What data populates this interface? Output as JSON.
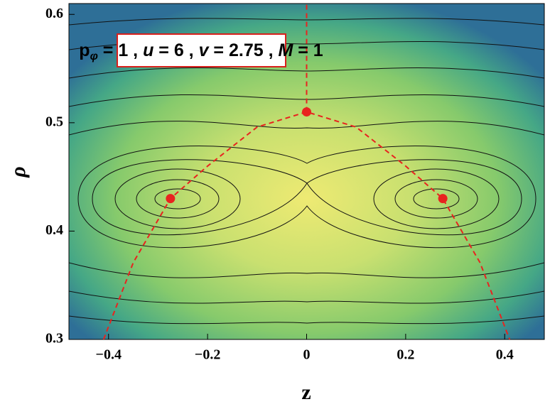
{
  "chart_data": {
    "type": "contour",
    "annotation": [
      "p",
      "φ",
      " = 1 ,  ",
      "u",
      " = 6 ,  ",
      "v",
      " = 2.75 ,  ",
      "M",
      " = 1"
    ],
    "x_label": "z",
    "y_label": "ρ",
    "xlim": [
      -0.48,
      0.48
    ],
    "ylim": [
      0.3,
      0.61
    ],
    "xticks": [
      {
        "value": -0.4,
        "label": "−0.4"
      },
      {
        "value": -0.2,
        "label": "−0.2"
      },
      0,
      0.2,
      0.4
    ],
    "yticks": [
      0.3,
      0.4,
      0.5,
      0.6
    ],
    "series": [
      {
        "kind": "dashed-line",
        "color": "#e8231f",
        "x": [
          -0.41,
          -0.35,
          -0.275,
          -0.2,
          -0.1,
          0,
          0.1,
          0.2,
          0.275,
          0.35,
          0.41
        ],
        "values": [
          0.3,
          0.371,
          0.43,
          0.46,
          0.496,
          0.51,
          0.496,
          0.46,
          0.43,
          0.371,
          0.3
        ]
      },
      {
        "kind": "dashed-line",
        "color": "#e8231f",
        "x": [
          0,
          0
        ],
        "values": [
          0.51,
          0.61
        ]
      },
      {
        "kind": "points",
        "color": "#e8231f",
        "x": [
          -0.275,
          0,
          0.275
        ],
        "values": [
          0.43,
          0.51,
          0.43
        ]
      }
    ]
  }
}
